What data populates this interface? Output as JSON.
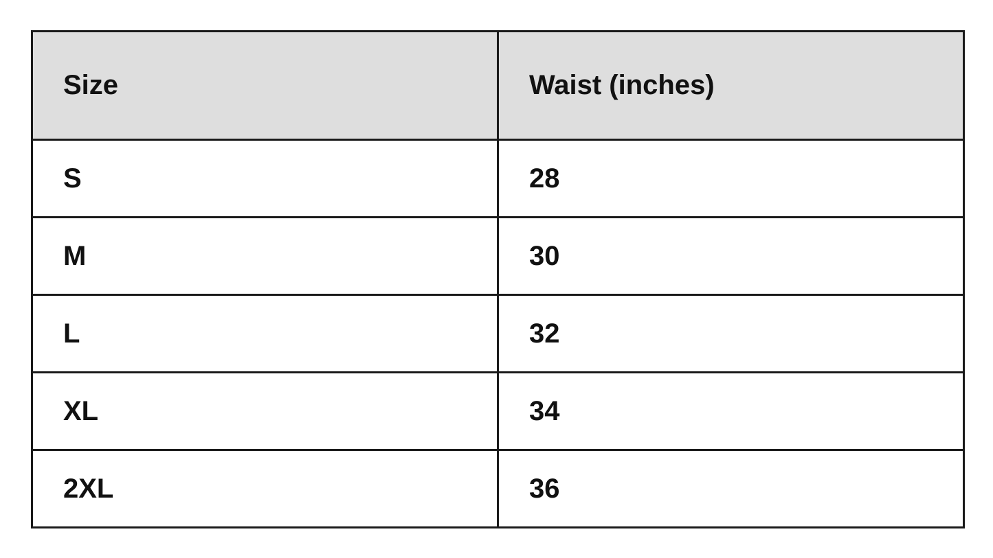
{
  "table": {
    "headers": [
      "Size",
      "Waist (inches)"
    ],
    "rows": [
      [
        "S",
        "28"
      ],
      [
        "M",
        "30"
      ],
      [
        "L",
        "32"
      ],
      [
        "XL",
        "34"
      ],
      [
        "2XL",
        "36"
      ]
    ]
  }
}
